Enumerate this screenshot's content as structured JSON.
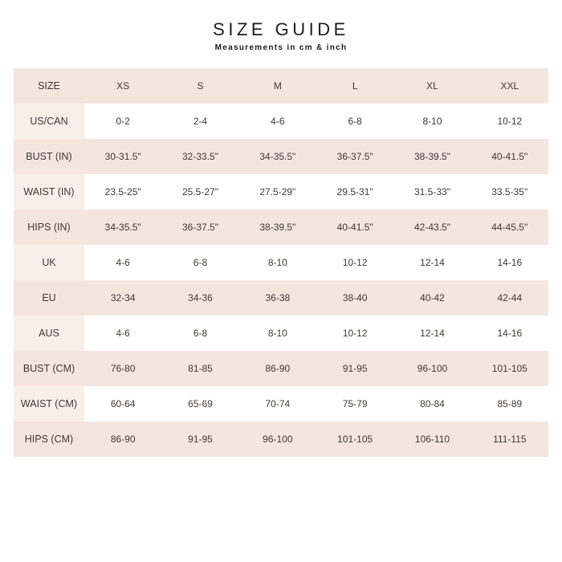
{
  "page": {
    "title": "SIZE GUIDE",
    "subtitle": "Measurements in cm & inch"
  },
  "colors": {
    "background": "#ffffff",
    "row_pink": "#f4e5df",
    "label_pink": "#f9efe9",
    "text": "#3d3936",
    "title": "#1c1c1c"
  },
  "table": {
    "header": [
      "SIZE",
      "XS",
      "S",
      "M",
      "L",
      "XL",
      "XXL"
    ],
    "rows": [
      {
        "label": "US/CAN",
        "values": [
          "0-2",
          "2-4",
          "4-6",
          "6-8",
          "8-10",
          "10-12"
        ]
      },
      {
        "label": "BUST (IN)",
        "values": [
          "30-31.5\"",
          "32-33.5\"",
          "34-35.5\"",
          "36-37.5\"",
          "38-39.5\"",
          "40-41.5''"
        ]
      },
      {
        "label": "WAIST (IN)",
        "values": [
          "23.5-25\"",
          "25.5-27\"",
          "27.5-29\"",
          "29.5-31\"",
          "31.5-33\"",
          "33.5-35''"
        ]
      },
      {
        "label": "HIPS (IN)",
        "values": [
          "34-35.5\"",
          "36-37.5\"",
          "38-39.5\"",
          "40-41.5\"",
          "42-43.5\"",
          "44-45.5''"
        ]
      },
      {
        "label": "UK",
        "values": [
          "4-6",
          "6-8",
          "8-10",
          "10-12",
          "12-14",
          "14-16"
        ]
      },
      {
        "label": "EU",
        "values": [
          "32-34",
          "34-36",
          "36-38",
          "38-40",
          "40-42",
          "42-44"
        ]
      },
      {
        "label": "AUS",
        "values": [
          "4-6",
          "6-8",
          "8-10",
          "10-12",
          "12-14",
          "14-16"
        ]
      },
      {
        "label": "BUST (CM)",
        "values": [
          "76-80",
          "81-85",
          "86-90",
          "91-95",
          "96-100",
          "101-105"
        ]
      },
      {
        "label": "WAIST (CM)",
        "values": [
          "60-64",
          "65-69",
          "70-74",
          "75-79",
          "80-84",
          "85-89"
        ]
      },
      {
        "label": "HIPS (CM)",
        "values": [
          "86-90",
          "91-95",
          "96-100",
          "101-105",
          "106-110",
          "111-115"
        ]
      }
    ]
  }
}
